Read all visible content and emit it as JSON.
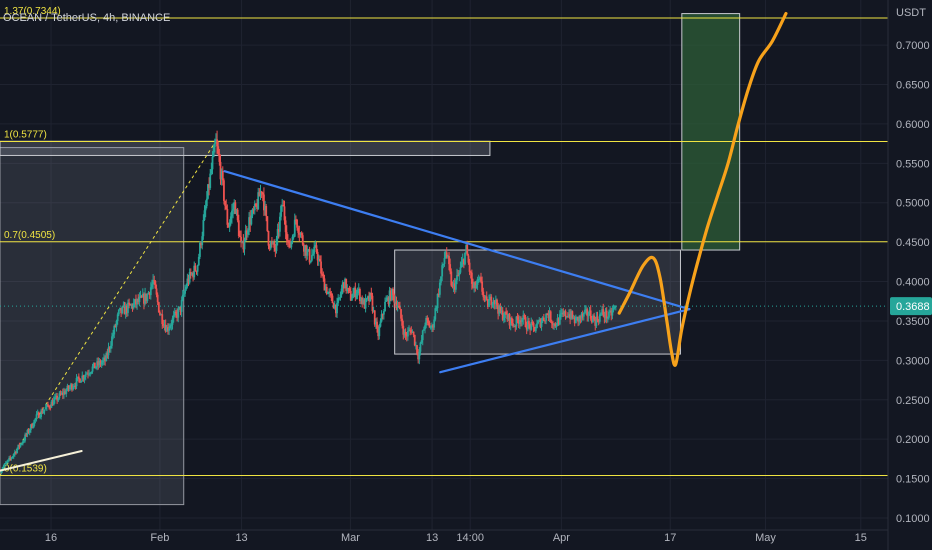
{
  "header": {
    "symbol_title": "OCEAN / TetherUS, 4h, BINANCE"
  },
  "price_axis": {
    "unit": "USDT"
  },
  "chart_data": {
    "type": "candlestick",
    "title": "OCEAN / TetherUS, 4h, BINANCE",
    "y_ticks": [
      0.7,
      0.65,
      0.6,
      0.55,
      0.5,
      0.45,
      0.4,
      0.35,
      0.3,
      0.25,
      0.2,
      0.15,
      0.1
    ],
    "y_tick_labels": [
      "0.7000",
      "0.6500",
      "0.6000",
      "0.5500",
      "0.5000",
      "0.4500",
      "0.4000",
      "0.3500",
      "0.3000",
      "0.2500",
      "0.2000",
      "0.1500",
      "0.1000"
    ],
    "ylim": [
      0.085,
      0.74
    ],
    "x_ticks": [
      {
        "t": 16,
        "label": "16"
      },
      {
        "t": 32,
        "label": "Feb"
      },
      {
        "t": 44,
        "label": "13"
      },
      {
        "t": 60,
        "label": "Mar"
      },
      {
        "t": 72,
        "label": "13"
      },
      {
        "t": 77.6,
        "label": "14:00"
      },
      {
        "t": 91,
        "label": "Apr"
      },
      {
        "t": 107,
        "label": "17"
      },
      {
        "t": 121,
        "label": "May"
      },
      {
        "t": 135,
        "label": "15"
      }
    ],
    "current_price": 0.3688,
    "current_price_label": "0.3688",
    "fib_levels": [
      {
        "label": "1.37(0.7344)",
        "value": 0.7344
      },
      {
        "label": "1(0.5777)",
        "value": 0.5777
      },
      {
        "label": "0.7(0.4505)",
        "value": 0.4505
      },
      {
        "label": "0(0.1539)",
        "value": 0.1539
      }
    ],
    "price_path": [
      [
        8.5,
        0.16
      ],
      [
        10,
        0.175
      ],
      [
        12,
        0.2
      ],
      [
        14,
        0.23
      ],
      [
        16,
        0.245
      ],
      [
        18,
        0.26
      ],
      [
        20,
        0.275
      ],
      [
        22,
        0.29
      ],
      [
        24,
        0.3
      ],
      [
        26,
        0.36
      ],
      [
        28,
        0.37
      ],
      [
        30,
        0.38
      ],
      [
        31,
        0.4
      ],
      [
        32,
        0.36
      ],
      [
        33,
        0.34
      ],
      [
        35,
        0.365
      ],
      [
        36,
        0.4
      ],
      [
        37.5,
        0.42
      ],
      [
        39,
        0.51
      ],
      [
        40.2,
        0.5777
      ],
      [
        41,
        0.535
      ],
      [
        42,
        0.47
      ],
      [
        43,
        0.5
      ],
      [
        44,
        0.44
      ],
      [
        45,
        0.475
      ],
      [
        46,
        0.49
      ],
      [
        47,
        0.52
      ],
      [
        48,
        0.45
      ],
      [
        49,
        0.44
      ],
      [
        50,
        0.5
      ],
      [
        51,
        0.44
      ],
      [
        52,
        0.48
      ],
      [
        53,
        0.45
      ],
      [
        54,
        0.43
      ],
      [
        55,
        0.44
      ],
      [
        56,
        0.4
      ],
      [
        57,
        0.38
      ],
      [
        58,
        0.365
      ],
      [
        59,
        0.4
      ],
      [
        60,
        0.38
      ],
      [
        61,
        0.39
      ],
      [
        62,
        0.37
      ],
      [
        63,
        0.38
      ],
      [
        64,
        0.33
      ],
      [
        65,
        0.37
      ],
      [
        66,
        0.385
      ],
      [
        67,
        0.37
      ],
      [
        68,
        0.33
      ],
      [
        69,
        0.34
      ],
      [
        70,
        0.305
      ],
      [
        71,
        0.35
      ],
      [
        72,
        0.34
      ],
      [
        73,
        0.39
      ],
      [
        74,
        0.44
      ],
      [
        75,
        0.39
      ],
      [
        76,
        0.41
      ],
      [
        77,
        0.44
      ],
      [
        78,
        0.39
      ],
      [
        79,
        0.4
      ],
      [
        80,
        0.37
      ],
      [
        81,
        0.38
      ],
      [
        82,
        0.36
      ],
      [
        83,
        0.355
      ],
      [
        84,
        0.345
      ],
      [
        85,
        0.355
      ],
      [
        86,
        0.345
      ],
      [
        87,
        0.34
      ],
      [
        88,
        0.35
      ],
      [
        89,
        0.36
      ],
      [
        90,
        0.345
      ],
      [
        91,
        0.355
      ],
      [
        92,
        0.36
      ],
      [
        93,
        0.35
      ],
      [
        94,
        0.355
      ],
      [
        95,
        0.36
      ],
      [
        96,
        0.35
      ],
      [
        97,
        0.36
      ],
      [
        98,
        0.355
      ],
      [
        99,
        0.3688
      ]
    ],
    "annotations": {
      "trend_upper": [
        [
          41.5,
          0.54
        ],
        [
          109.8,
          0.365
        ]
      ],
      "trend_lower": [
        [
          73.2,
          0.285
        ],
        [
          109.8,
          0.365
        ]
      ],
      "support_line": [
        [
          8.5,
          0.16
        ],
        [
          20.5,
          0.185
        ]
      ],
      "fib_diagonal": [
        [
          8.5,
          0.1539
        ],
        [
          40.2,
          0.5777
        ]
      ],
      "fib_box": {
        "t0": 8.5,
        "t1": 35.5,
        "p0": 0.117,
        "p1": 0.57
      },
      "resistance_box": {
        "t0": 8.5,
        "t1": 80.5,
        "p0": 0.56,
        "p1": 0.578
      },
      "consolidation_box": {
        "t0": 66.5,
        "t1": 108.5,
        "p0": 0.308,
        "p1": 0.44
      },
      "target_zone": {
        "t0": 108.7,
        "t1": 117.2,
        "p0": 0.44,
        "p1": 0.74
      },
      "projection_path": [
        [
          99.5,
          0.36
        ],
        [
          101,
          0.385
        ],
        [
          103,
          0.42
        ],
        [
          104.5,
          0.43
        ],
        [
          105.5,
          0.405
        ],
        [
          106.5,
          0.35
        ],
        [
          107.2,
          0.31
        ],
        [
          107.8,
          0.295
        ],
        [
          108.7,
          0.34
        ],
        [
          110,
          0.39
        ],
        [
          111.2,
          0.43
        ],
        [
          112.5,
          0.47
        ],
        [
          114,
          0.51
        ],
        [
          115.5,
          0.55
        ],
        [
          117,
          0.6
        ],
        [
          118.5,
          0.645
        ],
        [
          120,
          0.68
        ],
        [
          122,
          0.705
        ],
        [
          124,
          0.74
        ]
      ]
    },
    "colors": {
      "background": "#131722",
      "grid": "#1f2330",
      "up_candle": "#26a69a",
      "down_candle": "#ef5350",
      "trendline": "#3d7ef2",
      "projection": "#f7a21b",
      "fib_line": "#f0e442",
      "current_price_label": "#26a69a",
      "axis_text": "#b2b5be",
      "target_zone": "#2e5f38"
    }
  }
}
